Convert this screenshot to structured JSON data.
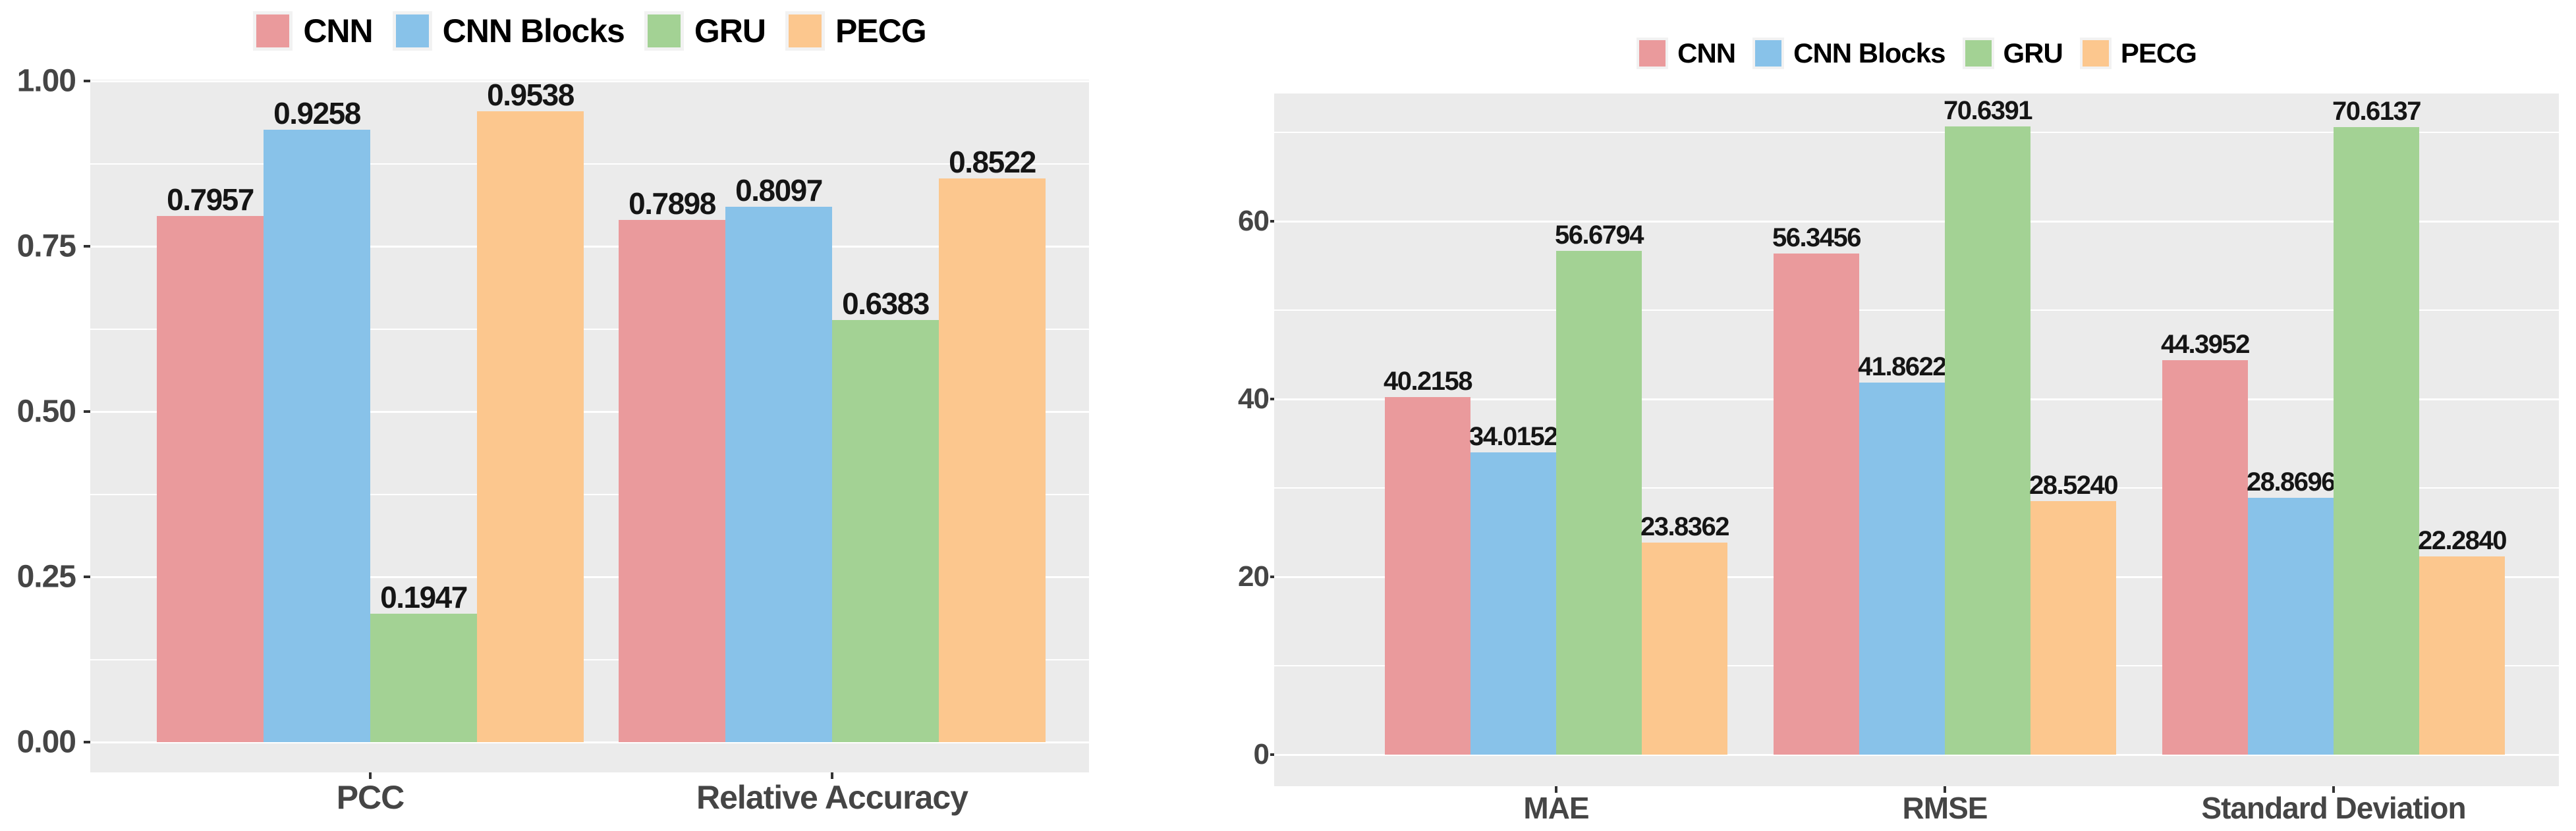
{
  "page": {
    "background": "#ffffff"
  },
  "chart_data": [
    {
      "type": "bar",
      "title": "",
      "legend_position": "top",
      "legend": [
        "CNN",
        "CNN Blocks",
        "GRU",
        "PECG"
      ],
      "categories": [
        "PCC",
        "Relative Accuracy"
      ],
      "series": [
        {
          "name": "CNN",
          "color": "#EA9A9C",
          "values": [
            0.7957,
            0.7898
          ],
          "labels": [
            "0.7957",
            "0.7898"
          ]
        },
        {
          "name": "CNN Blocks",
          "color": "#88C2E9",
          "values": [
            0.9258,
            0.8097
          ],
          "labels": [
            "0.9258",
            "0.8097"
          ]
        },
        {
          "name": "GRU",
          "color": "#A3D294",
          "values": [
            0.1947,
            0.6383
          ],
          "labels": [
            "0.1947",
            "0.6383"
          ]
        },
        {
          "name": "PECG",
          "color": "#FCC78E",
          "values": [
            0.9538,
            0.8522
          ],
          "labels": [
            "0.9538",
            "0.8522"
          ]
        }
      ],
      "xlabel": "",
      "ylabel": "",
      "ylim": [
        0,
        1.002
      ],
      "yticks": [
        {
          "value": 0.0,
          "label": "0.00"
        },
        {
          "value": 0.25,
          "label": "0.25"
        },
        {
          "value": 0.5,
          "label": "0.50"
        },
        {
          "value": 0.75,
          "label": "0.75"
        },
        {
          "value": 1.0,
          "label": "1.00"
        }
      ],
      "yticks_minor": [
        0.125,
        0.375,
        0.625,
        0.875
      ],
      "grid": true,
      "panel_bg": "#EBEBEB",
      "grid_color": "#FFFFFF",
      "axis_text_color": "#454545",
      "value_label_color": "#151515"
    },
    {
      "type": "bar",
      "title": "",
      "legend_position": "top",
      "legend": [
        "CNN",
        "CNN Blocks",
        "GRU",
        "PECG"
      ],
      "categories": [
        "MAE",
        "RMSE",
        "Standard Deviation"
      ],
      "series": [
        {
          "name": "CNN",
          "color": "#EA9A9C",
          "values": [
            40.2158,
            56.3456,
            44.3952
          ],
          "labels": [
            "40.2158",
            "56.3456",
            "44.3952"
          ]
        },
        {
          "name": "CNN Blocks",
          "color": "#88C2E9",
          "values": [
            34.0152,
            41.8622,
            28.8696
          ],
          "labels": [
            "34.0152",
            "41.8622",
            "28.8696"
          ]
        },
        {
          "name": "GRU",
          "color": "#A3D294",
          "values": [
            56.6794,
            70.6391,
            70.6137
          ],
          "labels": [
            "56.6794",
            "70.6391",
            "70.6137"
          ]
        },
        {
          "name": "PECG",
          "color": "#FCC78E",
          "values": [
            23.8362,
            28.524,
            22.284
          ],
          "labels": [
            "23.8362",
            "28.5240",
            "22.2840"
          ]
        }
      ],
      "xlabel": "",
      "ylabel": "",
      "ylim": [
        0,
        74.4
      ],
      "yticks": [
        {
          "value": 0,
          "label": "0"
        },
        {
          "value": 20,
          "label": "20"
        },
        {
          "value": 40,
          "label": "40"
        },
        {
          "value": 60,
          "label": "60"
        }
      ],
      "yticks_minor": [
        10,
        30,
        50,
        70
      ],
      "grid": true,
      "panel_bg": "#EBEBEB",
      "grid_color": "#FFFFFF",
      "axis_text_color": "#454545",
      "value_label_color": "#151515"
    }
  ]
}
